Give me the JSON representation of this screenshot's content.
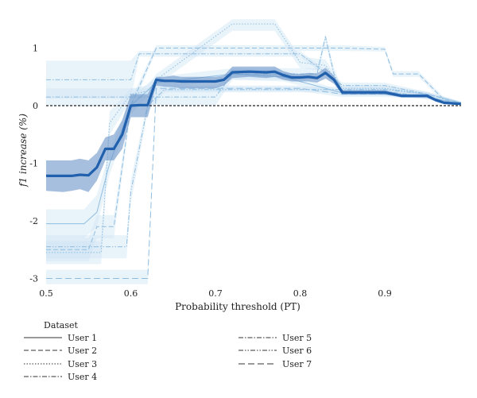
{
  "chart_data": {
    "type": "line",
    "title": "",
    "xlabel": "Probability threshold (PT)",
    "ylabel": "f1 increase (%)",
    "xlim": [
      0.5,
      0.99
    ],
    "ylim": [
      -3.1,
      1.5
    ],
    "x_ticks": [
      "0.5",
      "0.6",
      "0.7",
      "0.8",
      "0.9"
    ],
    "x_tick_values": [
      0.5,
      0.6,
      0.7,
      0.8,
      0.9
    ],
    "y_ticks": [
      "1",
      "0",
      "-1",
      "-2",
      "-3"
    ],
    "y_tick_values": [
      1,
      0,
      -1,
      -2,
      -3
    ],
    "grid": false,
    "legend": {
      "title": "Dataset",
      "placement": "bottom-left",
      "entries": [
        "User 1",
        "User 2",
        "User 3",
        "User 4",
        "User 5",
        "User 6",
        "User 7"
      ],
      "styles": [
        "solid",
        "dashed",
        "dotted",
        "dashdot",
        "dashdot",
        "dashdotdot",
        "loosedash"
      ]
    },
    "colors": {
      "mean_line": "#2160ad",
      "mean_band": "#6a95c8",
      "user_line": "#8fbde0",
      "user_band": "#cfe4f3",
      "zero_line": "#222222"
    },
    "mean": {
      "x": [
        0.5,
        0.52,
        0.53,
        0.54,
        0.55,
        0.56,
        0.57,
        0.58,
        0.59,
        0.6,
        0.61,
        0.62,
        0.63,
        0.64,
        0.65,
        0.66,
        0.68,
        0.7,
        0.71,
        0.72,
        0.74,
        0.76,
        0.77,
        0.78,
        0.79,
        0.8,
        0.81,
        0.82,
        0.83,
        0.84,
        0.85,
        0.86,
        0.88,
        0.9,
        0.91,
        0.92,
        0.94,
        0.95,
        0.96,
        0.97,
        0.98,
        0.99
      ],
      "y": [
        -1.22,
        -1.22,
        -1.22,
        -1.2,
        -1.21,
        -1.07,
        -0.75,
        -0.75,
        -0.5,
        0.0,
        0.01,
        0.01,
        0.45,
        0.43,
        0.43,
        0.42,
        0.42,
        0.42,
        0.45,
        0.58,
        0.59,
        0.58,
        0.59,
        0.53,
        0.49,
        0.49,
        0.5,
        0.48,
        0.57,
        0.45,
        0.23,
        0.23,
        0.23,
        0.23,
        0.2,
        0.17,
        0.17,
        0.17,
        0.1,
        0.05,
        0.04,
        0.03
      ],
      "upper": [
        -0.95,
        -0.95,
        -0.95,
        -0.92,
        -0.95,
        -0.82,
        -0.55,
        -0.5,
        -0.25,
        0.2,
        0.2,
        0.2,
        0.5,
        0.5,
        0.52,
        0.5,
        0.5,
        0.5,
        0.52,
        0.68,
        0.68,
        0.68,
        0.68,
        0.6,
        0.56,
        0.55,
        0.57,
        0.56,
        0.66,
        0.52,
        0.27,
        0.27,
        0.27,
        0.27,
        0.23,
        0.2,
        0.2,
        0.2,
        0.13,
        0.08,
        0.06,
        0.04
      ],
      "lower": [
        -1.48,
        -1.5,
        -1.48,
        -1.45,
        -1.5,
        -1.3,
        -0.95,
        -0.95,
        -0.75,
        -0.2,
        -0.2,
        -0.2,
        0.35,
        0.33,
        0.32,
        0.3,
        0.3,
        0.3,
        0.35,
        0.48,
        0.5,
        0.48,
        0.5,
        0.45,
        0.42,
        0.42,
        0.42,
        0.4,
        0.47,
        0.38,
        0.19,
        0.19,
        0.19,
        0.19,
        0.17,
        0.14,
        0.14,
        0.14,
        0.07,
        0.03,
        0.02,
        0.02
      ]
    },
    "series": [
      {
        "name": "User 1",
        "x": [
          0.5,
          0.545,
          0.56,
          0.575,
          0.6,
          0.63,
          0.72,
          0.78,
          0.85,
          0.9,
          0.95,
          0.99
        ],
        "y": [
          -2.05,
          -2.05,
          -1.85,
          -1.0,
          0.0,
          0.4,
          0.55,
          0.5,
          0.22,
          0.22,
          0.15,
          0.03
        ],
        "upper": [
          -1.8,
          -1.8,
          -1.55,
          -0.8,
          0.15,
          0.5,
          0.65,
          0.58,
          0.26,
          0.26,
          0.18,
          0.05
        ],
        "lower": [
          -2.3,
          -2.3,
          -2.1,
          -1.2,
          -0.15,
          0.3,
          0.45,
          0.42,
          0.18,
          0.18,
          0.12,
          0.01
        ]
      },
      {
        "name": "User 2",
        "x": [
          0.5,
          0.55,
          0.56,
          0.58,
          0.6,
          0.63,
          0.72,
          0.83,
          0.845,
          0.85,
          0.9,
          0.91,
          0.94,
          0.97,
          0.99
        ],
        "y": [
          -2.5,
          -2.5,
          -2.1,
          -2.1,
          0.0,
          1.0,
          1.0,
          1.0,
          1.0,
          1.0,
          0.98,
          0.55,
          0.55,
          0.1,
          0.05
        ],
        "upper": [
          -2.3,
          -2.3,
          -1.9,
          -1.9,
          0.1,
          1.05,
          1.05,
          1.05,
          1.05,
          1.05,
          1.02,
          0.6,
          0.6,
          0.14,
          0.07
        ],
        "lower": [
          -2.7,
          -2.7,
          -2.3,
          -2.3,
          -0.1,
          0.95,
          0.95,
          0.95,
          0.95,
          0.95,
          0.94,
          0.5,
          0.5,
          0.06,
          0.03
        ]
      },
      {
        "name": "User 3",
        "x": [
          0.5,
          0.565,
          0.575,
          0.6,
          0.62,
          0.63,
          0.72,
          0.75,
          0.77,
          0.8,
          0.83,
          0.85,
          0.9,
          0.95,
          0.99
        ],
        "y": [
          -2.55,
          -2.55,
          -0.3,
          0.2,
          0.25,
          0.45,
          1.42,
          1.42,
          1.42,
          0.75,
          0.7,
          0.3,
          0.3,
          0.2,
          0.05
        ],
        "upper": [
          -2.35,
          -2.35,
          -0.1,
          0.3,
          0.35,
          0.55,
          1.5,
          1.5,
          1.5,
          0.85,
          0.8,
          0.35,
          0.35,
          0.24,
          0.07
        ],
        "lower": [
          -2.75,
          -2.75,
          -0.5,
          0.1,
          0.15,
          0.35,
          1.3,
          1.3,
          1.3,
          0.65,
          0.6,
          0.25,
          0.25,
          0.16,
          0.03
        ]
      },
      {
        "name": "User 4",
        "x": [
          0.5,
          0.56,
          0.57,
          0.6,
          0.63,
          0.7,
          0.72,
          0.8,
          0.82,
          0.83,
          0.84,
          0.85,
          0.9,
          0.95,
          0.99
        ],
        "y": [
          0.15,
          0.15,
          0.15,
          0.15,
          0.15,
          0.15,
          0.55,
          0.55,
          0.55,
          1.2,
          0.55,
          0.25,
          0.25,
          0.15,
          0.03
        ],
        "upper": [
          0.3,
          0.3,
          0.3,
          0.3,
          0.3,
          0.3,
          0.65,
          0.65,
          0.65,
          1.25,
          0.65,
          0.3,
          0.3,
          0.19,
          0.05
        ],
        "lower": [
          0.0,
          0.0,
          0.0,
          0.0,
          0.0,
          0.0,
          0.45,
          0.45,
          0.45,
          1.1,
          0.45,
          0.2,
          0.2,
          0.11,
          0.01
        ]
      },
      {
        "name": "User 5",
        "x": [
          0.5,
          0.6,
          0.61,
          0.7,
          0.8,
          0.85,
          0.9,
          0.95,
          0.99
        ],
        "y": [
          0.45,
          0.45,
          0.9,
          0.9,
          0.9,
          0.35,
          0.35,
          0.2,
          0.05
        ],
        "upper": [
          0.78,
          0.78,
          0.95,
          0.95,
          0.95,
          0.4,
          0.4,
          0.24,
          0.07
        ],
        "lower": [
          0.12,
          0.12,
          0.85,
          0.85,
          0.85,
          0.3,
          0.3,
          0.16,
          0.03
        ]
      },
      {
        "name": "User 6",
        "x": [
          0.5,
          0.58,
          0.595,
          0.6,
          0.62,
          0.64,
          0.7,
          0.8,
          0.85,
          0.86,
          0.9,
          0.95,
          0.99
        ],
        "y": [
          -2.45,
          -2.45,
          -2.45,
          -1.5,
          0.0,
          0.28,
          0.28,
          0.28,
          0.28,
          0.28,
          0.28,
          0.2,
          0.05
        ],
        "upper": [
          -2.25,
          -2.25,
          -2.25,
          -1.3,
          0.1,
          0.33,
          0.33,
          0.33,
          0.33,
          0.33,
          0.33,
          0.24,
          0.07
        ],
        "lower": [
          -2.65,
          -2.65,
          -2.65,
          -1.7,
          -0.1,
          0.23,
          0.23,
          0.23,
          0.23,
          0.23,
          0.23,
          0.16,
          0.03
        ]
      },
      {
        "name": "User 7",
        "x": [
          0.5,
          0.6,
          0.62,
          0.63,
          0.7,
          0.8,
          0.85,
          0.9,
          0.95,
          0.99
        ],
        "y": [
          -3.0,
          -3.0,
          -3.0,
          0.3,
          0.3,
          0.3,
          0.2,
          0.2,
          0.15,
          0.03
        ],
        "upper": [
          -2.85,
          -2.85,
          -2.85,
          0.35,
          0.35,
          0.35,
          0.25,
          0.25,
          0.18,
          0.05
        ],
        "lower": [
          -3.1,
          -3.1,
          -3.1,
          0.25,
          0.25,
          0.25,
          0.15,
          0.15,
          0.12,
          0.01
        ]
      }
    ]
  }
}
